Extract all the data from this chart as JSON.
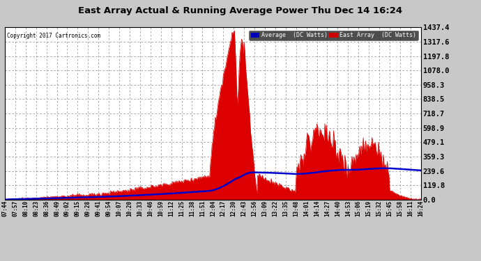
{
  "title": "East Array Actual & Running Average Power Thu Dec 14 16:24",
  "copyright": "Copyright 2017 Cartronics.com",
  "legend_labels": [
    "Average  (DC Watts)",
    "East Array  (DC Watts)"
  ],
  "legend_colors": [
    "#0000bb",
    "#cc0000"
  ],
  "background_color": "#c8c8c8",
  "plot_bg_color": "#ffffff",
  "grid_color": "#999999",
  "ytick_labels": [
    "0.0",
    "119.8",
    "239.6",
    "359.3",
    "479.1",
    "598.9",
    "718.7",
    "838.5",
    "958.3",
    "1078.0",
    "1197.8",
    "1317.6",
    "1437.4"
  ],
  "ytick_values": [
    0.0,
    119.8,
    239.6,
    359.3,
    479.1,
    598.9,
    718.7,
    838.5,
    958.3,
    1078.0,
    1197.8,
    1317.6,
    1437.4
  ],
  "ymax": 1437.4,
  "area_color": "#dd0000",
  "line_color": "#0000cc",
  "xtick_labels": [
    "07:44",
    "07:57",
    "08:10",
    "08:23",
    "08:36",
    "08:49",
    "09:02",
    "09:15",
    "09:28",
    "09:41",
    "09:54",
    "10:07",
    "10:20",
    "10:33",
    "10:46",
    "10:59",
    "11:12",
    "11:25",
    "11:38",
    "11:51",
    "12:04",
    "12:17",
    "12:30",
    "12:43",
    "12:56",
    "13:09",
    "13:22",
    "13:35",
    "13:48",
    "14:01",
    "14:14",
    "14:27",
    "14:40",
    "14:53",
    "15:06",
    "15:19",
    "15:32",
    "15:45",
    "15:58",
    "16:11",
    "16:24"
  ]
}
